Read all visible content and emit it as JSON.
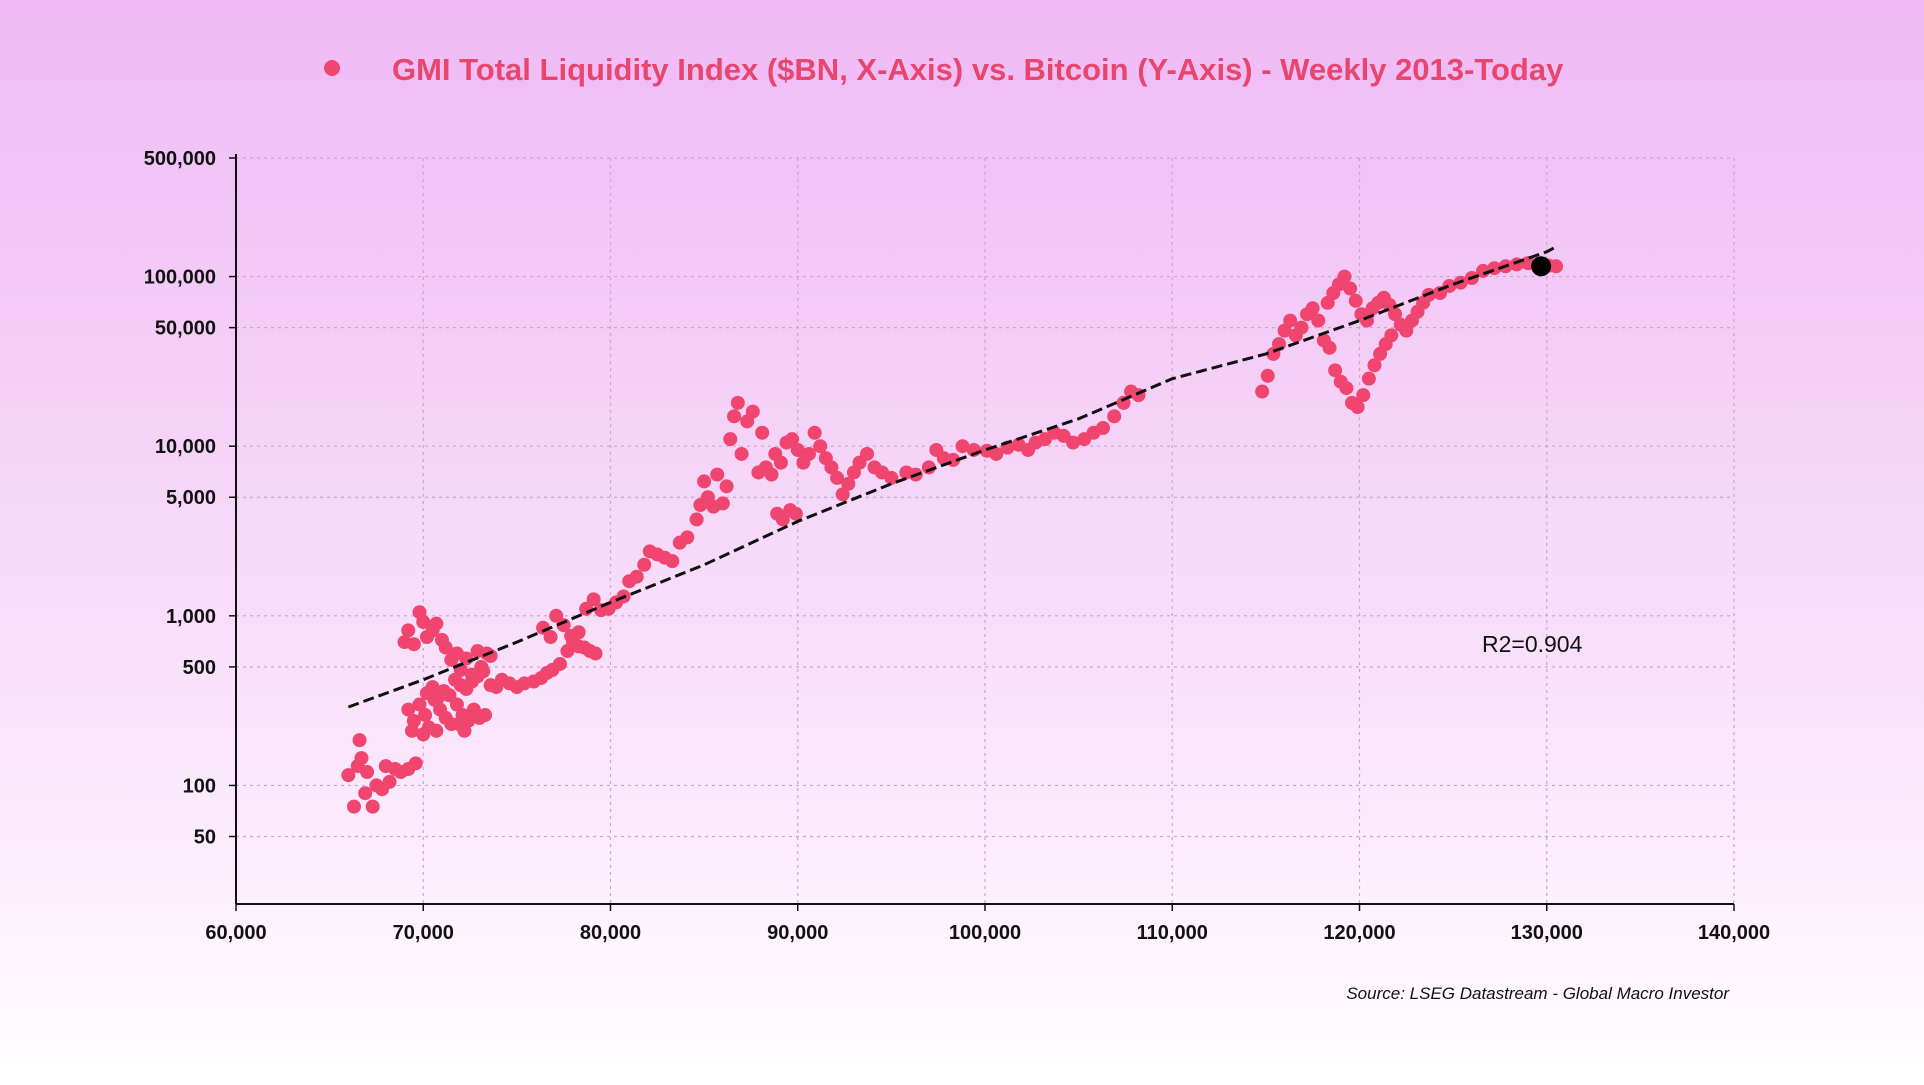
{
  "chart_data": {
    "type": "scatter",
    "title": "GMI Total Liquidity Index ($BN, X-Axis) vs. Bitcoin (Y-Axis) - Weekly 2013-Today",
    "source": "Source: LSEG Datastream - Global Macro Investor",
    "annotation": "R2=0.904",
    "xlabel": "",
    "ylabel": "",
    "x_scale": "linear",
    "y_scale": "log",
    "xlim": [
      60000,
      140000
    ],
    "ylim": [
      20,
      500000
    ],
    "x_ticks": [
      60000,
      70000,
      80000,
      90000,
      100000,
      110000,
      120000,
      130000,
      140000
    ],
    "x_tick_labels": [
      "60,000",
      "70,000",
      "80,000",
      "90,000",
      "100,000",
      "110,000",
      "120,000",
      "130,000",
      "140,000"
    ],
    "y_ticks": [
      50,
      100,
      500,
      1000,
      5000,
      10000,
      50000,
      100000,
      500000
    ],
    "y_tick_labels": [
      "50",
      "100",
      "500",
      "1,000",
      "5,000",
      "10,000",
      "50,000",
      "100,000",
      "500,000"
    ],
    "grid": true,
    "legend_position": "top-center",
    "colors": {
      "points": "#f0456f",
      "trend": "#111111",
      "latest": "#000000",
      "title": "#e8456f",
      "grid": "#c9a8cc"
    },
    "series": [
      {
        "name": "GMI Total Liquidity Index ($BN, X-Axis) vs. Bitcoin (Y-Axis) - Weekly 2013-Today",
        "points": [
          [
            66000,
            115
          ],
          [
            66300,
            75
          ],
          [
            66500,
            130
          ],
          [
            66600,
            185
          ],
          [
            66700,
            145
          ],
          [
            66900,
            90
          ],
          [
            67000,
            120
          ],
          [
            67300,
            75
          ],
          [
            67500,
            100
          ],
          [
            67800,
            95
          ],
          [
            68000,
            130
          ],
          [
            68200,
            105
          ],
          [
            68500,
            125
          ],
          [
            68800,
            120
          ],
          [
            69200,
            125
          ],
          [
            69600,
            135
          ],
          [
            69000,
            700
          ],
          [
            69200,
            820
          ],
          [
            69500,
            680
          ],
          [
            69800,
            1050
          ],
          [
            70000,
            920
          ],
          [
            70200,
            750
          ],
          [
            70500,
            820
          ],
          [
            70700,
            900
          ],
          [
            71000,
            720
          ],
          [
            71200,
            650
          ],
          [
            71500,
            550
          ],
          [
            71800,
            600
          ],
          [
            72000,
            480
          ],
          [
            72300,
            560
          ],
          [
            72600,
            450
          ],
          [
            72900,
            620
          ],
          [
            73100,
            500
          ],
          [
            73400,
            600
          ],
          [
            73600,
            580
          ],
          [
            69200,
            280
          ],
          [
            69500,
            240
          ],
          [
            69800,
            300
          ],
          [
            70100,
            260
          ],
          [
            70300,
            220
          ],
          [
            70600,
            320
          ],
          [
            70900,
            280
          ],
          [
            71200,
            250
          ],
          [
            71500,
            230
          ],
          [
            71800,
            300
          ],
          [
            72100,
            260
          ],
          [
            72400,
            240
          ],
          [
            72700,
            280
          ],
          [
            73000,
            250
          ],
          [
            73300,
            260
          ],
          [
            70200,
            350
          ],
          [
            70500,
            380
          ],
          [
            70800,
            330
          ],
          [
            71100,
            360
          ],
          [
            71400,
            340
          ],
          [
            71700,
            420
          ],
          [
            72000,
            390
          ],
          [
            72300,
            370
          ],
          [
            72600,
            410
          ],
          [
            72900,
            440
          ],
          [
            73200,
            470
          ],
          [
            73600,
            390
          ],
          [
            69400,
            210
          ],
          [
            70000,
            200
          ],
          [
            70700,
            210
          ],
          [
            71900,
            230
          ],
          [
            72200,
            210
          ],
          [
            73900,
            380
          ],
          [
            74200,
            420
          ],
          [
            74600,
            400
          ],
          [
            75000,
            380
          ],
          [
            75400,
            400
          ],
          [
            75900,
            410
          ],
          [
            76300,
            430
          ],
          [
            76600,
            460
          ],
          [
            76900,
            480
          ],
          [
            77300,
            520
          ],
          [
            77700,
            620
          ],
          [
            78000,
            700
          ],
          [
            78300,
            660
          ],
          [
            78600,
            650
          ],
          [
            78900,
            620
          ],
          [
            79200,
            600
          ],
          [
            76400,
            850
          ],
          [
            76800,
            750
          ],
          [
            77100,
            1000
          ],
          [
            77500,
            880
          ],
          [
            77900,
            760
          ],
          [
            78300,
            800
          ],
          [
            78700,
            1100
          ],
          [
            79100,
            1250
          ],
          [
            79500,
            1080
          ],
          [
            79900,
            1100
          ],
          [
            80300,
            1200
          ],
          [
            80700,
            1300
          ],
          [
            81000,
            1600
          ],
          [
            81400,
            1700
          ],
          [
            81800,
            2000
          ],
          [
            82100,
            2400
          ],
          [
            82500,
            2300
          ],
          [
            82900,
            2200
          ],
          [
            83300,
            2100
          ],
          [
            83700,
            2700
          ],
          [
            84100,
            2900
          ],
          [
            84600,
            3700
          ],
          [
            84800,
            4500
          ],
          [
            85000,
            6200
          ],
          [
            85200,
            5000
          ],
          [
            85500,
            4400
          ],
          [
            85700,
            6800
          ],
          [
            86000,
            4600
          ],
          [
            86200,
            5800
          ],
          [
            86400,
            11000
          ],
          [
            86600,
            15000
          ],
          [
            86800,
            18000
          ],
          [
            87000,
            9000
          ],
          [
            87300,
            14000
          ],
          [
            87600,
            16000
          ],
          [
            87900,
            7000
          ],
          [
            88100,
            12000
          ],
          [
            88300,
            7500
          ],
          [
            88600,
            6800
          ],
          [
            88900,
            4000
          ],
          [
            89200,
            3700
          ],
          [
            89600,
            4200
          ],
          [
            89900,
            4000
          ],
          [
            88800,
            9000
          ],
          [
            89100,
            8000
          ],
          [
            89400,
            10500
          ],
          [
            89700,
            11000
          ],
          [
            90000,
            9500
          ],
          [
            90300,
            8000
          ],
          [
            90600,
            9000
          ],
          [
            90900,
            12000
          ],
          [
            91200,
            10000
          ],
          [
            91500,
            8500
          ],
          [
            91800,
            7500
          ],
          [
            92100,
            6500
          ],
          [
            92400,
            5200
          ],
          [
            92700,
            6000
          ],
          [
            93000,
            7000
          ],
          [
            93300,
            8000
          ],
          [
            93700,
            9000
          ],
          [
            94100,
            7500
          ],
          [
            94500,
            7000
          ],
          [
            95000,
            6500
          ],
          [
            95800,
            7000
          ],
          [
            96300,
            6800
          ],
          [
            97000,
            7500
          ],
          [
            97400,
            9500
          ],
          [
            97800,
            8500
          ],
          [
            98300,
            8300
          ],
          [
            98800,
            10000
          ],
          [
            99400,
            9500
          ],
          [
            100100,
            9400
          ],
          [
            100600,
            9000
          ],
          [
            101200,
            9800
          ],
          [
            101800,
            10200
          ],
          [
            102300,
            9500
          ],
          [
            102700,
            10500
          ],
          [
            103200,
            11000
          ],
          [
            103700,
            12000
          ],
          [
            104200,
            11500
          ],
          [
            104700,
            10500
          ],
          [
            105300,
            11000
          ],
          [
            105800,
            12000
          ],
          [
            106300,
            12800
          ],
          [
            106900,
            15000
          ],
          [
            107400,
            18000
          ],
          [
            107800,
            21000
          ],
          [
            108200,
            20000
          ],
          [
            114800,
            21000
          ],
          [
            115100,
            26000
          ],
          [
            115400,
            35000
          ],
          [
            115700,
            40000
          ],
          [
            116000,
            48000
          ],
          [
            116300,
            55000
          ],
          [
            116600,
            45000
          ],
          [
            116900,
            50000
          ],
          [
            117200,
            60000
          ],
          [
            117500,
            65000
          ],
          [
            117800,
            55000
          ],
          [
            118100,
            42000
          ],
          [
            118400,
            38000
          ],
          [
            118700,
            28000
          ],
          [
            119000,
            24000
          ],
          [
            119300,
            22000
          ],
          [
            119600,
            18000
          ],
          [
            119900,
            17000
          ],
          [
            120200,
            20000
          ],
          [
            120500,
            25000
          ],
          [
            120800,
            30000
          ],
          [
            121100,
            35000
          ],
          [
            121400,
            40000
          ],
          [
            121700,
            45000
          ],
          [
            118300,
            70000
          ],
          [
            118600,
            80000
          ],
          [
            118900,
            90000
          ],
          [
            119200,
            100000
          ],
          [
            119500,
            85000
          ],
          [
            119800,
            72000
          ],
          [
            120100,
            60000
          ],
          [
            120400,
            55000
          ],
          [
            120700,
            65000
          ],
          [
            121000,
            70000
          ],
          [
            121300,
            75000
          ],
          [
            121600,
            68000
          ],
          [
            121900,
            60000
          ],
          [
            122200,
            52000
          ],
          [
            122500,
            48000
          ],
          [
            122800,
            55000
          ],
          [
            123100,
            62000
          ],
          [
            123400,
            70000
          ],
          [
            123700,
            78000
          ],
          [
            124300,
            80000
          ],
          [
            124800,
            88000
          ],
          [
            125400,
            92000
          ],
          [
            126000,
            98000
          ],
          [
            126600,
            108000
          ],
          [
            127200,
            112000
          ],
          [
            127800,
            115000
          ],
          [
            128400,
            118000
          ],
          [
            129000,
            120000
          ],
          [
            129600,
            118000
          ],
          [
            130100,
            116000
          ],
          [
            130500,
            115000
          ]
        ]
      },
      {
        "name": "Trend",
        "type": "line",
        "style": "dashed",
        "points": [
          [
            66000,
            290
          ],
          [
            70000,
            420
          ],
          [
            75000,
            700
          ],
          [
            80000,
            1200
          ],
          [
            85000,
            2000
          ],
          [
            90000,
            3600
          ],
          [
            95000,
            6000
          ],
          [
            100000,
            9500
          ],
          [
            105000,
            14500
          ],
          [
            110000,
            25000
          ],
          [
            115000,
            35000
          ],
          [
            120000,
            55000
          ],
          [
            125000,
            90000
          ],
          [
            130000,
            140000
          ],
          [
            130500,
            150000
          ]
        ]
      },
      {
        "name": "Latest",
        "points": [
          [
            129700,
            115000
          ]
        ]
      }
    ]
  }
}
